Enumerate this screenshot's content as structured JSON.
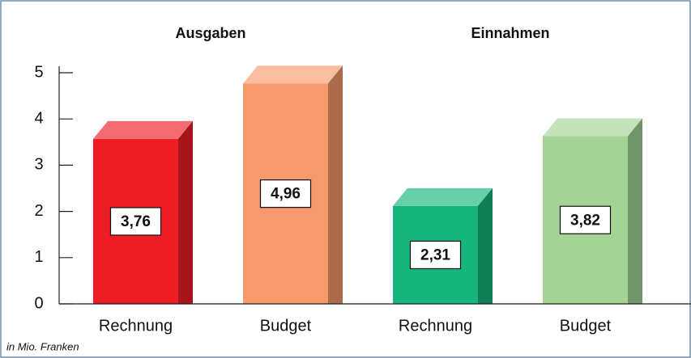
{
  "chart_data": {
    "type": "bar3d",
    "group_labels": [
      "Ausgaben",
      "Einnahmen"
    ],
    "categories": [
      "Rechnung",
      "Budget",
      "Rechnung",
      "Budget"
    ],
    "values": [
      3.76,
      4.96,
      2.31,
      3.82
    ],
    "value_labels": [
      "3,76",
      "4,96",
      "2,31",
      "3,82"
    ],
    "colors": [
      "#ee1c25",
      "#f59a6c",
      "#15b57b",
      "#a4d495"
    ],
    "ylim": [
      0,
      5
    ],
    "yticks": [
      0,
      1,
      2,
      3,
      4,
      5
    ],
    "footnote": "in Mio. Franken"
  }
}
